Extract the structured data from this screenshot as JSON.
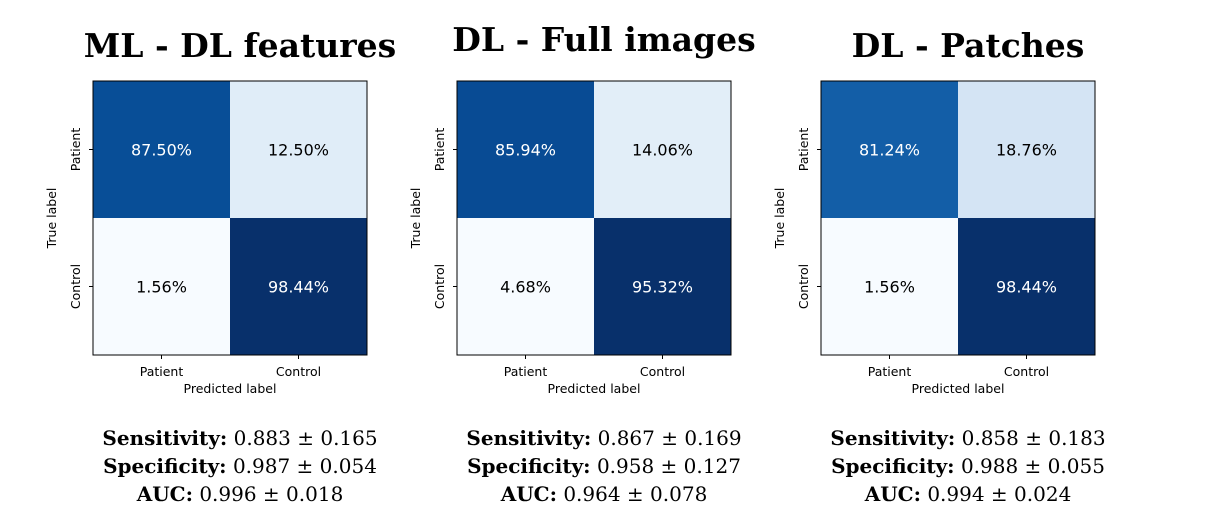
{
  "chart_data": [
    {
      "type": "heatmap",
      "title": "ML - DL features",
      "xlabel": "Predicted label",
      "ylabel": "True label",
      "x_categories": [
        "Patient",
        "Control"
      ],
      "y_categories": [
        "Patient",
        "Control"
      ],
      "values": [
        [
          87.5,
          12.5
        ],
        [
          1.56,
          98.44
        ]
      ],
      "labels": [
        [
          "87.50%",
          "12.50%"
        ],
        [
          "1.56%",
          "98.44%"
        ]
      ],
      "colormap": "Blues",
      "metrics": [
        {
          "name": "Sensitivity:",
          "value": "0.883 ± 0.165"
        },
        {
          "name": "Specificity:",
          "value": "0.987 ± 0.054"
        },
        {
          "name": "AUC:",
          "value": "0.996 ± 0.018"
        }
      ]
    },
    {
      "type": "heatmap",
      "title": "DL - Full images",
      "xlabel": "Predicted label",
      "ylabel": "True label",
      "x_categories": [
        "Patient",
        "Control"
      ],
      "y_categories": [
        "Patient",
        "Control"
      ],
      "values": [
        [
          85.94,
          14.06
        ],
        [
          4.68,
          95.32
        ]
      ],
      "labels": [
        [
          "85.94%",
          "14.06%"
        ],
        [
          "4.68%",
          "95.32%"
        ]
      ],
      "colormap": "Blues",
      "metrics": [
        {
          "name": "Sensitivity:",
          "value": "0.867 ± 0.169"
        },
        {
          "name": "Specificity:",
          "value": "0.958 ± 0.127"
        },
        {
          "name": "AUC:",
          "value": "0.964 ± 0.078"
        }
      ]
    },
    {
      "type": "heatmap",
      "title": "DL - Patches",
      "xlabel": "Predicted label",
      "ylabel": "True label",
      "x_categories": [
        "Patient",
        "Control"
      ],
      "y_categories": [
        "Patient",
        "Control"
      ],
      "values": [
        [
          81.24,
          18.76
        ],
        [
          1.56,
          98.44
        ]
      ],
      "labels": [
        [
          "81.24%",
          "18.76%"
        ],
        [
          "1.56%",
          "98.44%"
        ]
      ],
      "colormap": "Blues",
      "metrics": [
        {
          "name": "Sensitivity:",
          "value": "0.858 ± 0.183"
        },
        {
          "name": "Specificity:",
          "value": "0.988 ± 0.055"
        },
        {
          "name": "AUC:",
          "value": "0.994 ± 0.024"
        }
      ]
    }
  ]
}
